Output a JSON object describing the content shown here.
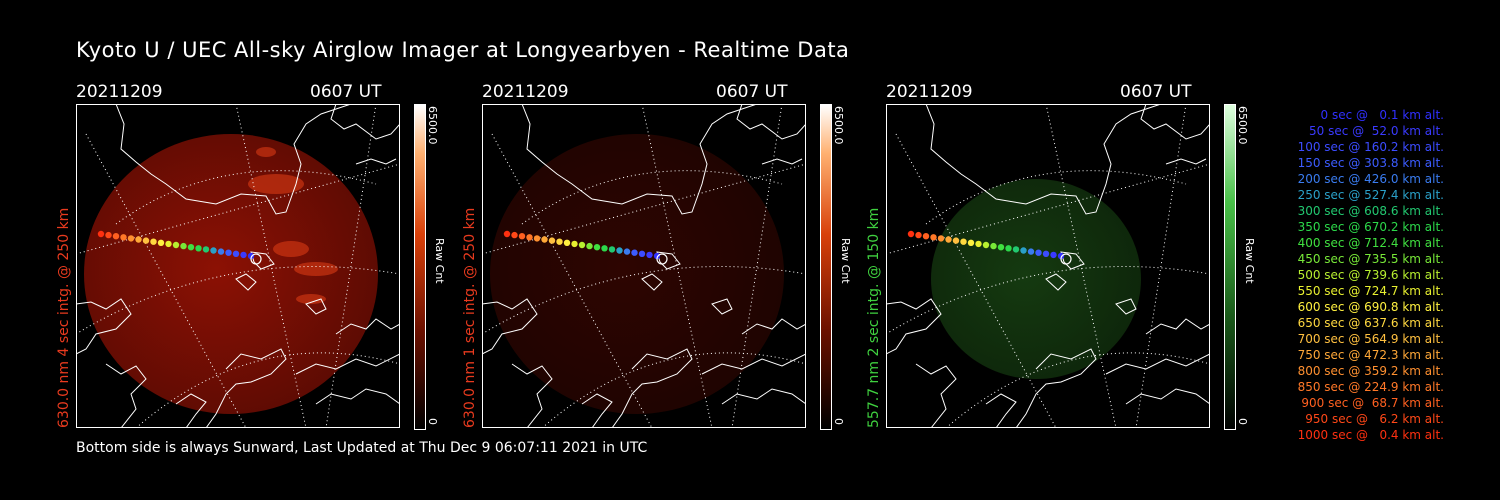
{
  "title": "Kyoto U / UEC All-sky Airglow Imager at Longyearbyen - Realtime Data",
  "footer": "Bottom side is always Sunward, Last Updated at Thu Dec  9 06:07:11 2021 in UTC",
  "colors": {
    "red_panel": "#e01e0a",
    "green_panel": "#2fb52f",
    "label_red": "#e83a1e",
    "label_green": "#3fd03f"
  },
  "panels": [
    {
      "date": "20211209",
      "time": "0607 UT",
      "side_label": "630.0 nm 4 sec intg. @ 250 km",
      "colorbar_max": "6500.0",
      "colorbar_min": "0",
      "colorbar_unit": "Raw Cnt",
      "tone": "red",
      "brightness": 0.55
    },
    {
      "date": "20211209",
      "time": "0607 UT",
      "side_label": "630.0 nm 1 sec intg. @ 250 km",
      "colorbar_max": "6500.0",
      "colorbar_min": "0",
      "colorbar_unit": "Raw Cnt",
      "tone": "red",
      "brightness": 0.18
    },
    {
      "date": "20211209",
      "time": "0607 UT",
      "side_label": "557.7 nm 2 sec intg. @ 150 km",
      "colorbar_max": "6500.0",
      "colorbar_min": "0",
      "colorbar_unit": "Raw Cnt",
      "tone": "green",
      "brightness": 0.35
    }
  ],
  "legend": [
    {
      "text": "  0 sec @   0.1 km alt.",
      "color": "#3030ff"
    },
    {
      "text": " 50 sec @  52.0 km alt.",
      "color": "#3a3aff"
    },
    {
      "text": "100 sec @ 160.2 km alt.",
      "color": "#3c4cff"
    },
    {
      "text": "150 sec @ 303.8 km alt.",
      "color": "#3c5cff"
    },
    {
      "text": "200 sec @ 426.0 km alt.",
      "color": "#3a7cf0"
    },
    {
      "text": "250 sec @ 527.4 km alt.",
      "color": "#2aa0c8"
    },
    {
      "text": "300 sec @ 608.6 km alt.",
      "color": "#22c870"
    },
    {
      "text": "350 sec @ 670.2 km alt.",
      "color": "#2cd84a"
    },
    {
      "text": "400 sec @ 712.4 km alt.",
      "color": "#40e040"
    },
    {
      "text": "450 sec @ 735.5 km alt.",
      "color": "#78e838"
    },
    {
      "text": "500 sec @ 739.6 km alt.",
      "color": "#b8f030"
    },
    {
      "text": "550 sec @ 724.7 km alt.",
      "color": "#e8f030"
    },
    {
      "text": "600 sec @ 690.8 km alt.",
      "color": "#fff040"
    },
    {
      "text": "650 sec @ 637.6 km alt.",
      "color": "#ffd840"
    },
    {
      "text": "700 sec @ 564.9 km alt.",
      "color": "#ffc040"
    },
    {
      "text": "750 sec @ 472.3 km alt.",
      "color": "#ffa838"
    },
    {
      "text": "800 sec @ 359.2 km alt.",
      "color": "#ff9030"
    },
    {
      "text": "850 sec @ 224.9 km alt.",
      "color": "#ff7828"
    },
    {
      "text": "900 sec @  68.7 km alt.",
      "color": "#ff6020"
    },
    {
      "text": "950 sec @   6.2 km alt.",
      "color": "#ff4818"
    },
    {
      "text": "1000 sec @   0.4 km alt.",
      "color": "#ff3010"
    }
  ]
}
